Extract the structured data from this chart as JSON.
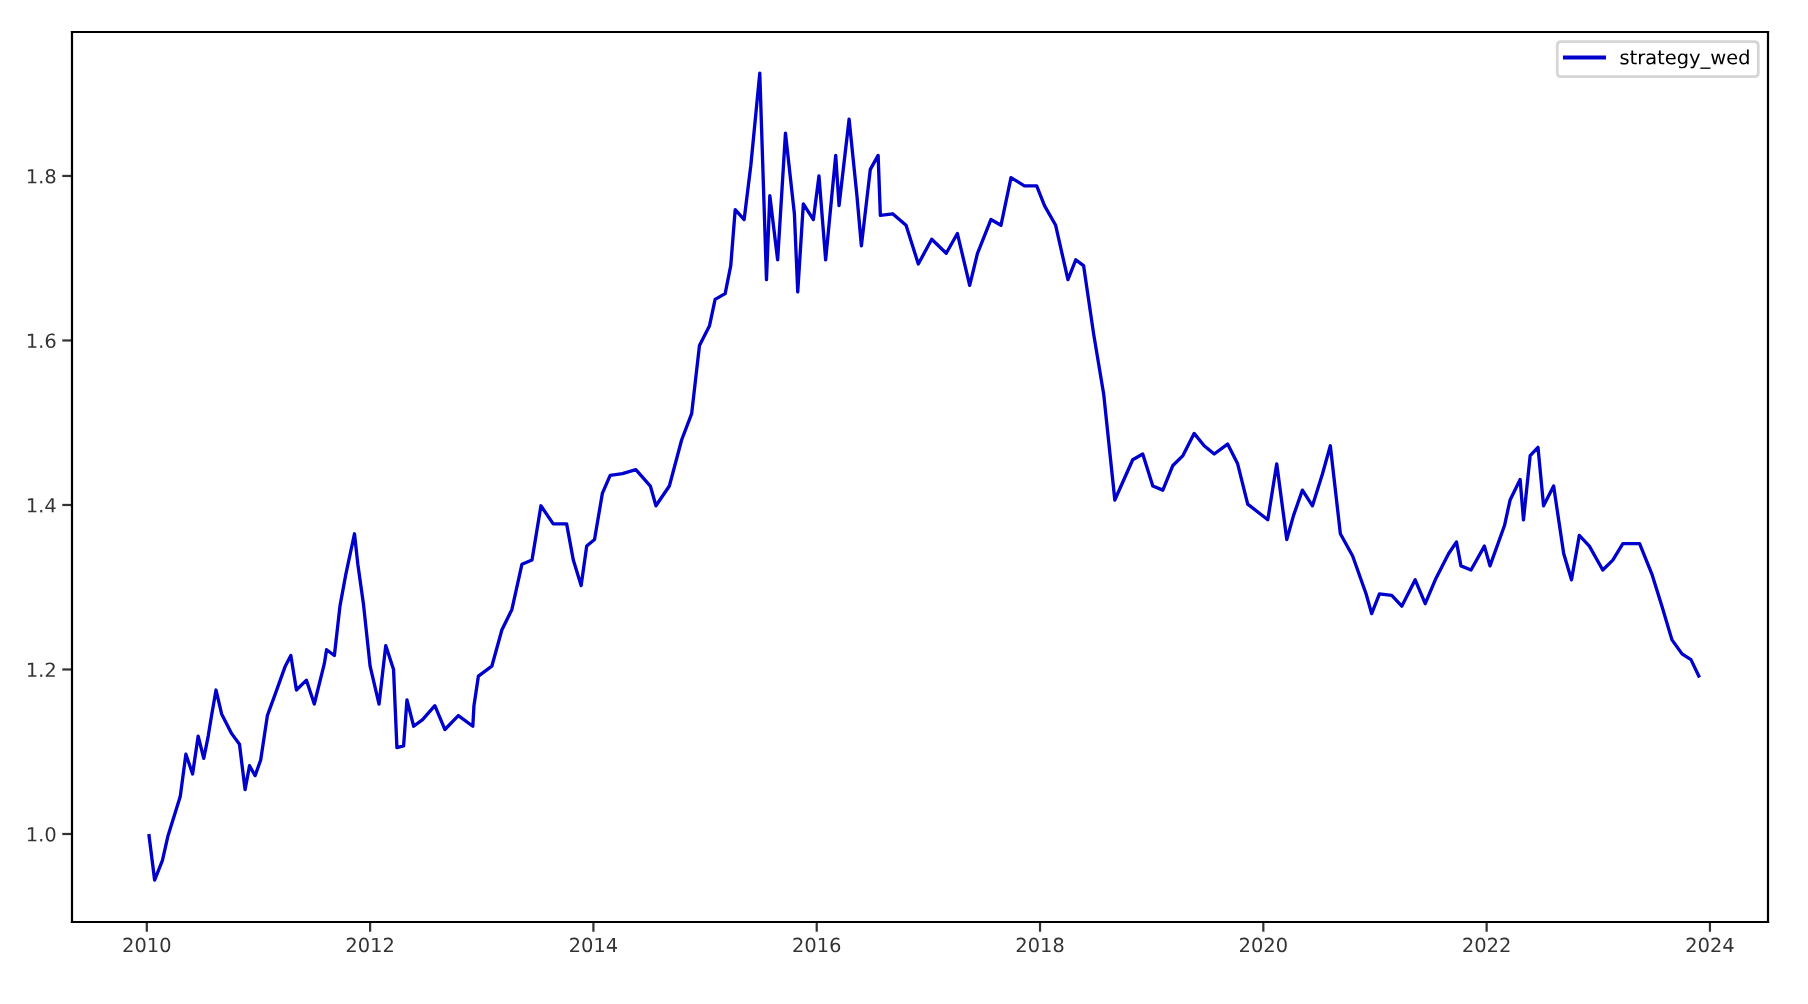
{
  "chart_data": {
    "type": "line",
    "xlim": [
      2009.33,
      2024.52
    ],
    "ylim": [
      0.893,
      1.975
    ],
    "xticks": [
      2010,
      2012,
      2014,
      2016,
      2018,
      2020,
      2022,
      2024
    ],
    "yticks": [
      {
        "value": 1.0,
        "label": "1.0"
      },
      {
        "value": 1.2,
        "label": "1.2"
      },
      {
        "value": 1.4,
        "label": "1.4"
      },
      {
        "value": 1.6,
        "label": "1.6"
      },
      {
        "value": 1.8,
        "label": "1.8"
      }
    ],
    "grid": false,
    "legend": "top right",
    "marker": "none",
    "line_style": "solid",
    "series": [
      {
        "name": "strategy_wed",
        "color": "#0000cc",
        "x": [
          2010.02,
          2010.07,
          2010.14,
          2010.19,
          2010.25,
          2010.3,
          2010.35,
          2010.41,
          2010.46,
          2010.51,
          2010.55,
          2010.58,
          2010.62,
          2010.67,
          2010.76,
          2010.83,
          2010.88,
          2010.92,
          2010.97,
          2011.02,
          2011.08,
          2011.15,
          2011.24,
          2011.29,
          2011.34,
          2011.43,
          2011.5,
          2011.59,
          2011.61,
          2011.68,
          2011.73,
          2011.78,
          2011.86,
          2011.89,
          2011.94,
          2012.0,
          2012.08,
          2012.14,
          2012.21,
          2012.24,
          2012.3,
          2012.33,
          2012.39,
          2012.47,
          2012.58,
          2012.67,
          2012.79,
          2012.92,
          2012.93,
          2012.97,
          2013.09,
          2013.18,
          2013.27,
          2013.36,
          2013.45,
          2013.53,
          2013.64,
          2013.76,
          2013.82,
          2013.89,
          2013.94,
          2014.01,
          2014.08,
          2014.15,
          2014.26,
          2014.38,
          2014.51,
          2014.56,
          2014.68,
          2014.79,
          2014.88,
          2014.95,
          2015.04,
          2015.09,
          2015.18,
          2015.23,
          2015.27,
          2015.35,
          2015.41,
          2015.49,
          2015.55,
          2015.58,
          2015.65,
          2015.72,
          2015.8,
          2015.83,
          2015.88,
          2015.97,
          2016.02,
          2016.08,
          2016.17,
          2016.2,
          2016.29,
          2016.36,
          2016.4,
          2016.48,
          2016.55,
          2016.57,
          2016.68,
          2016.8,
          2016.91,
          2017.03,
          2017.16,
          2017.26,
          2017.37,
          2017.44,
          2017.56,
          2017.65,
          2017.74,
          2017.86,
          2017.97,
          2018.04,
          2018.14,
          2018.25,
          2018.32,
          2018.39,
          2018.48,
          2018.57,
          2018.67,
          2018.83,
          2018.92,
          2019.01,
          2019.1,
          2019.19,
          2019.28,
          2019.38,
          2019.47,
          2019.56,
          2019.68,
          2019.77,
          2019.86,
          2020.04,
          2020.12,
          2020.21,
          2020.27,
          2020.35,
          2020.44,
          2020.53,
          2020.6,
          2020.69,
          2020.8,
          2020.92,
          2020.97,
          2021.04,
          2021.15,
          2021.24,
          2021.36,
          2021.45,
          2021.54,
          2021.66,
          2021.73,
          2021.77,
          2021.86,
          2021.98,
          2022.03,
          2022.16,
          2022.21,
          2022.3,
          2022.33,
          2022.39,
          2022.46,
          2022.51,
          2022.6,
          2022.69,
          2022.76,
          2022.83,
          2022.92,
          2023.04,
          2023.13,
          2023.22,
          2023.37,
          2023.48,
          2023.57,
          2023.66,
          2023.75,
          2023.83,
          2023.9
        ],
        "values": [
          0.998,
          0.944,
          0.968,
          0.998,
          1.024,
          1.046,
          1.097,
          1.073,
          1.119,
          1.092,
          1.119,
          1.144,
          1.175,
          1.146,
          1.122,
          1.109,
          1.054,
          1.083,
          1.071,
          1.09,
          1.144,
          1.17,
          1.204,
          1.217,
          1.175,
          1.187,
          1.158,
          1.207,
          1.224,
          1.217,
          1.277,
          1.314,
          1.365,
          1.328,
          1.28,
          1.204,
          1.158,
          1.229,
          1.2,
          1.105,
          1.107,
          1.163,
          1.131,
          1.139,
          1.156,
          1.127,
          1.144,
          1.131,
          1.156,
          1.192,
          1.204,
          1.248,
          1.273,
          1.328,
          1.333,
          1.399,
          1.377,
          1.377,
          1.333,
          1.302,
          1.35,
          1.358,
          1.414,
          1.436,
          1.438,
          1.443,
          1.423,
          1.399,
          1.423,
          1.479,
          1.511,
          1.594,
          1.618,
          1.65,
          1.657,
          1.691,
          1.759,
          1.747,
          1.813,
          1.925,
          1.674,
          1.776,
          1.698,
          1.852,
          1.754,
          1.659,
          1.766,
          1.747,
          1.8,
          1.698,
          1.825,
          1.764,
          1.869,
          1.776,
          1.715,
          1.808,
          1.825,
          1.752,
          1.754,
          1.74,
          1.693,
          1.723,
          1.706,
          1.73,
          1.667,
          1.706,
          1.747,
          1.74,
          1.798,
          1.788,
          1.788,
          1.764,
          1.74,
          1.674,
          1.698,
          1.691,
          1.608,
          1.535,
          1.406,
          1.455,
          1.462,
          1.423,
          1.418,
          1.448,
          1.46,
          1.487,
          1.472,
          1.462,
          1.474,
          1.45,
          1.401,
          1.382,
          1.45,
          1.358,
          1.387,
          1.418,
          1.399,
          1.438,
          1.472,
          1.365,
          1.338,
          1.292,
          1.268,
          1.292,
          1.29,
          1.277,
          1.309,
          1.28,
          1.309,
          1.341,
          1.355,
          1.326,
          1.321,
          1.35,
          1.326,
          1.375,
          1.406,
          1.431,
          1.382,
          1.46,
          1.47,
          1.399,
          1.423,
          1.341,
          1.309,
          1.363,
          1.35,
          1.321,
          1.333,
          1.353,
          1.353,
          1.316,
          1.277,
          1.236,
          1.219,
          1.212,
          1.192
        ]
      }
    ]
  }
}
